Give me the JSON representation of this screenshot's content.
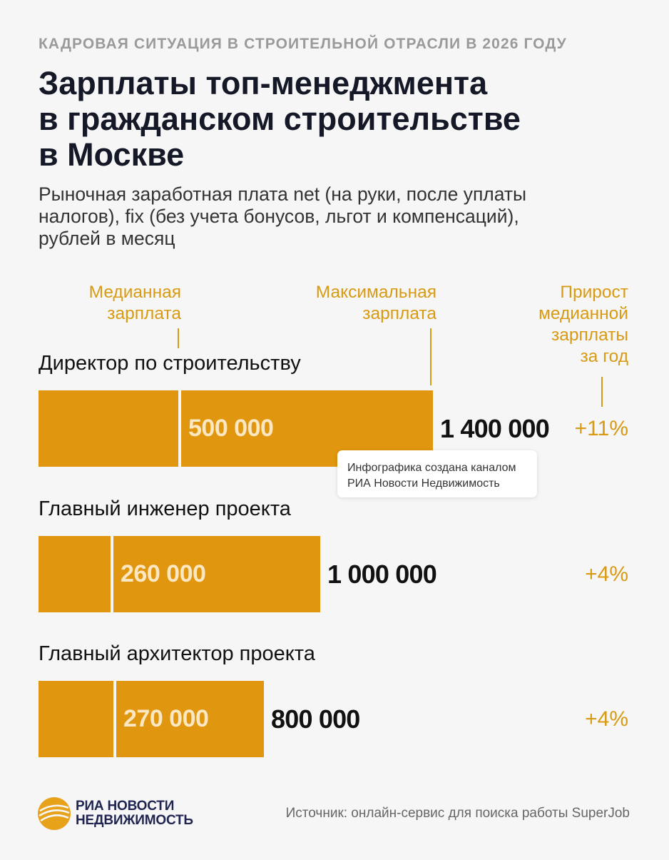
{
  "kicker": "КАДРОВАЯ СИТУАЦИЯ В СТРОИТЕЛЬНОЙ ОТРАСЛИ В 2026 ГОДУ",
  "title": [
    "Зарплаты топ-менеджмента",
    "в гражданском строительстве",
    "в Москве"
  ],
  "subtitle": [
    "Рыночная заработная плата net (на руки, после уплаты",
    "налогов), fix (без учета бонусов, льгот и компенсаций),",
    "рублей в месяц"
  ],
  "legend": {
    "median": [
      "Медианная",
      "зарплата"
    ],
    "max": [
      "Максимальная",
      "зарплата"
    ],
    "growth": [
      "Прирост",
      "медианной",
      "зарплаты",
      "за год"
    ]
  },
  "chart_data": {
    "type": "bar",
    "orientation": "horizontal",
    "categories": [
      "Директор по строительству",
      "Главный инженер проекта",
      "Главный архитектор проекта"
    ],
    "series": [
      {
        "name": "Медианная зарплата",
        "values": [
          500000,
          260000,
          270000
        ],
        "labels": [
          "500 000",
          "260 000",
          "270 000"
        ]
      },
      {
        "name": "Максимальная зарплата",
        "values": [
          1400000,
          1000000,
          800000
        ],
        "labels": [
          "1 400 000",
          "1 000 000",
          "800 000"
        ]
      }
    ],
    "growth": {
      "name": "Прирост медианной зарплаты за год",
      "labels": [
        "+11%",
        "+4%",
        "+4%"
      ]
    },
    "unit": "рублей в месяц",
    "color": "#e0960e"
  },
  "tooltip": [
    "Инфографика создана каналом",
    "РИА Новости Недвижимость"
  ],
  "logo": [
    "РИА НОВОСТИ",
    "НЕДВИЖИМОСТЬ"
  ],
  "source": "Источник: онлайн-сервис для поиска работы SuperJob",
  "colors": {
    "accent": "#d99a13",
    "bar": "#e0960e",
    "title": "#151826"
  }
}
